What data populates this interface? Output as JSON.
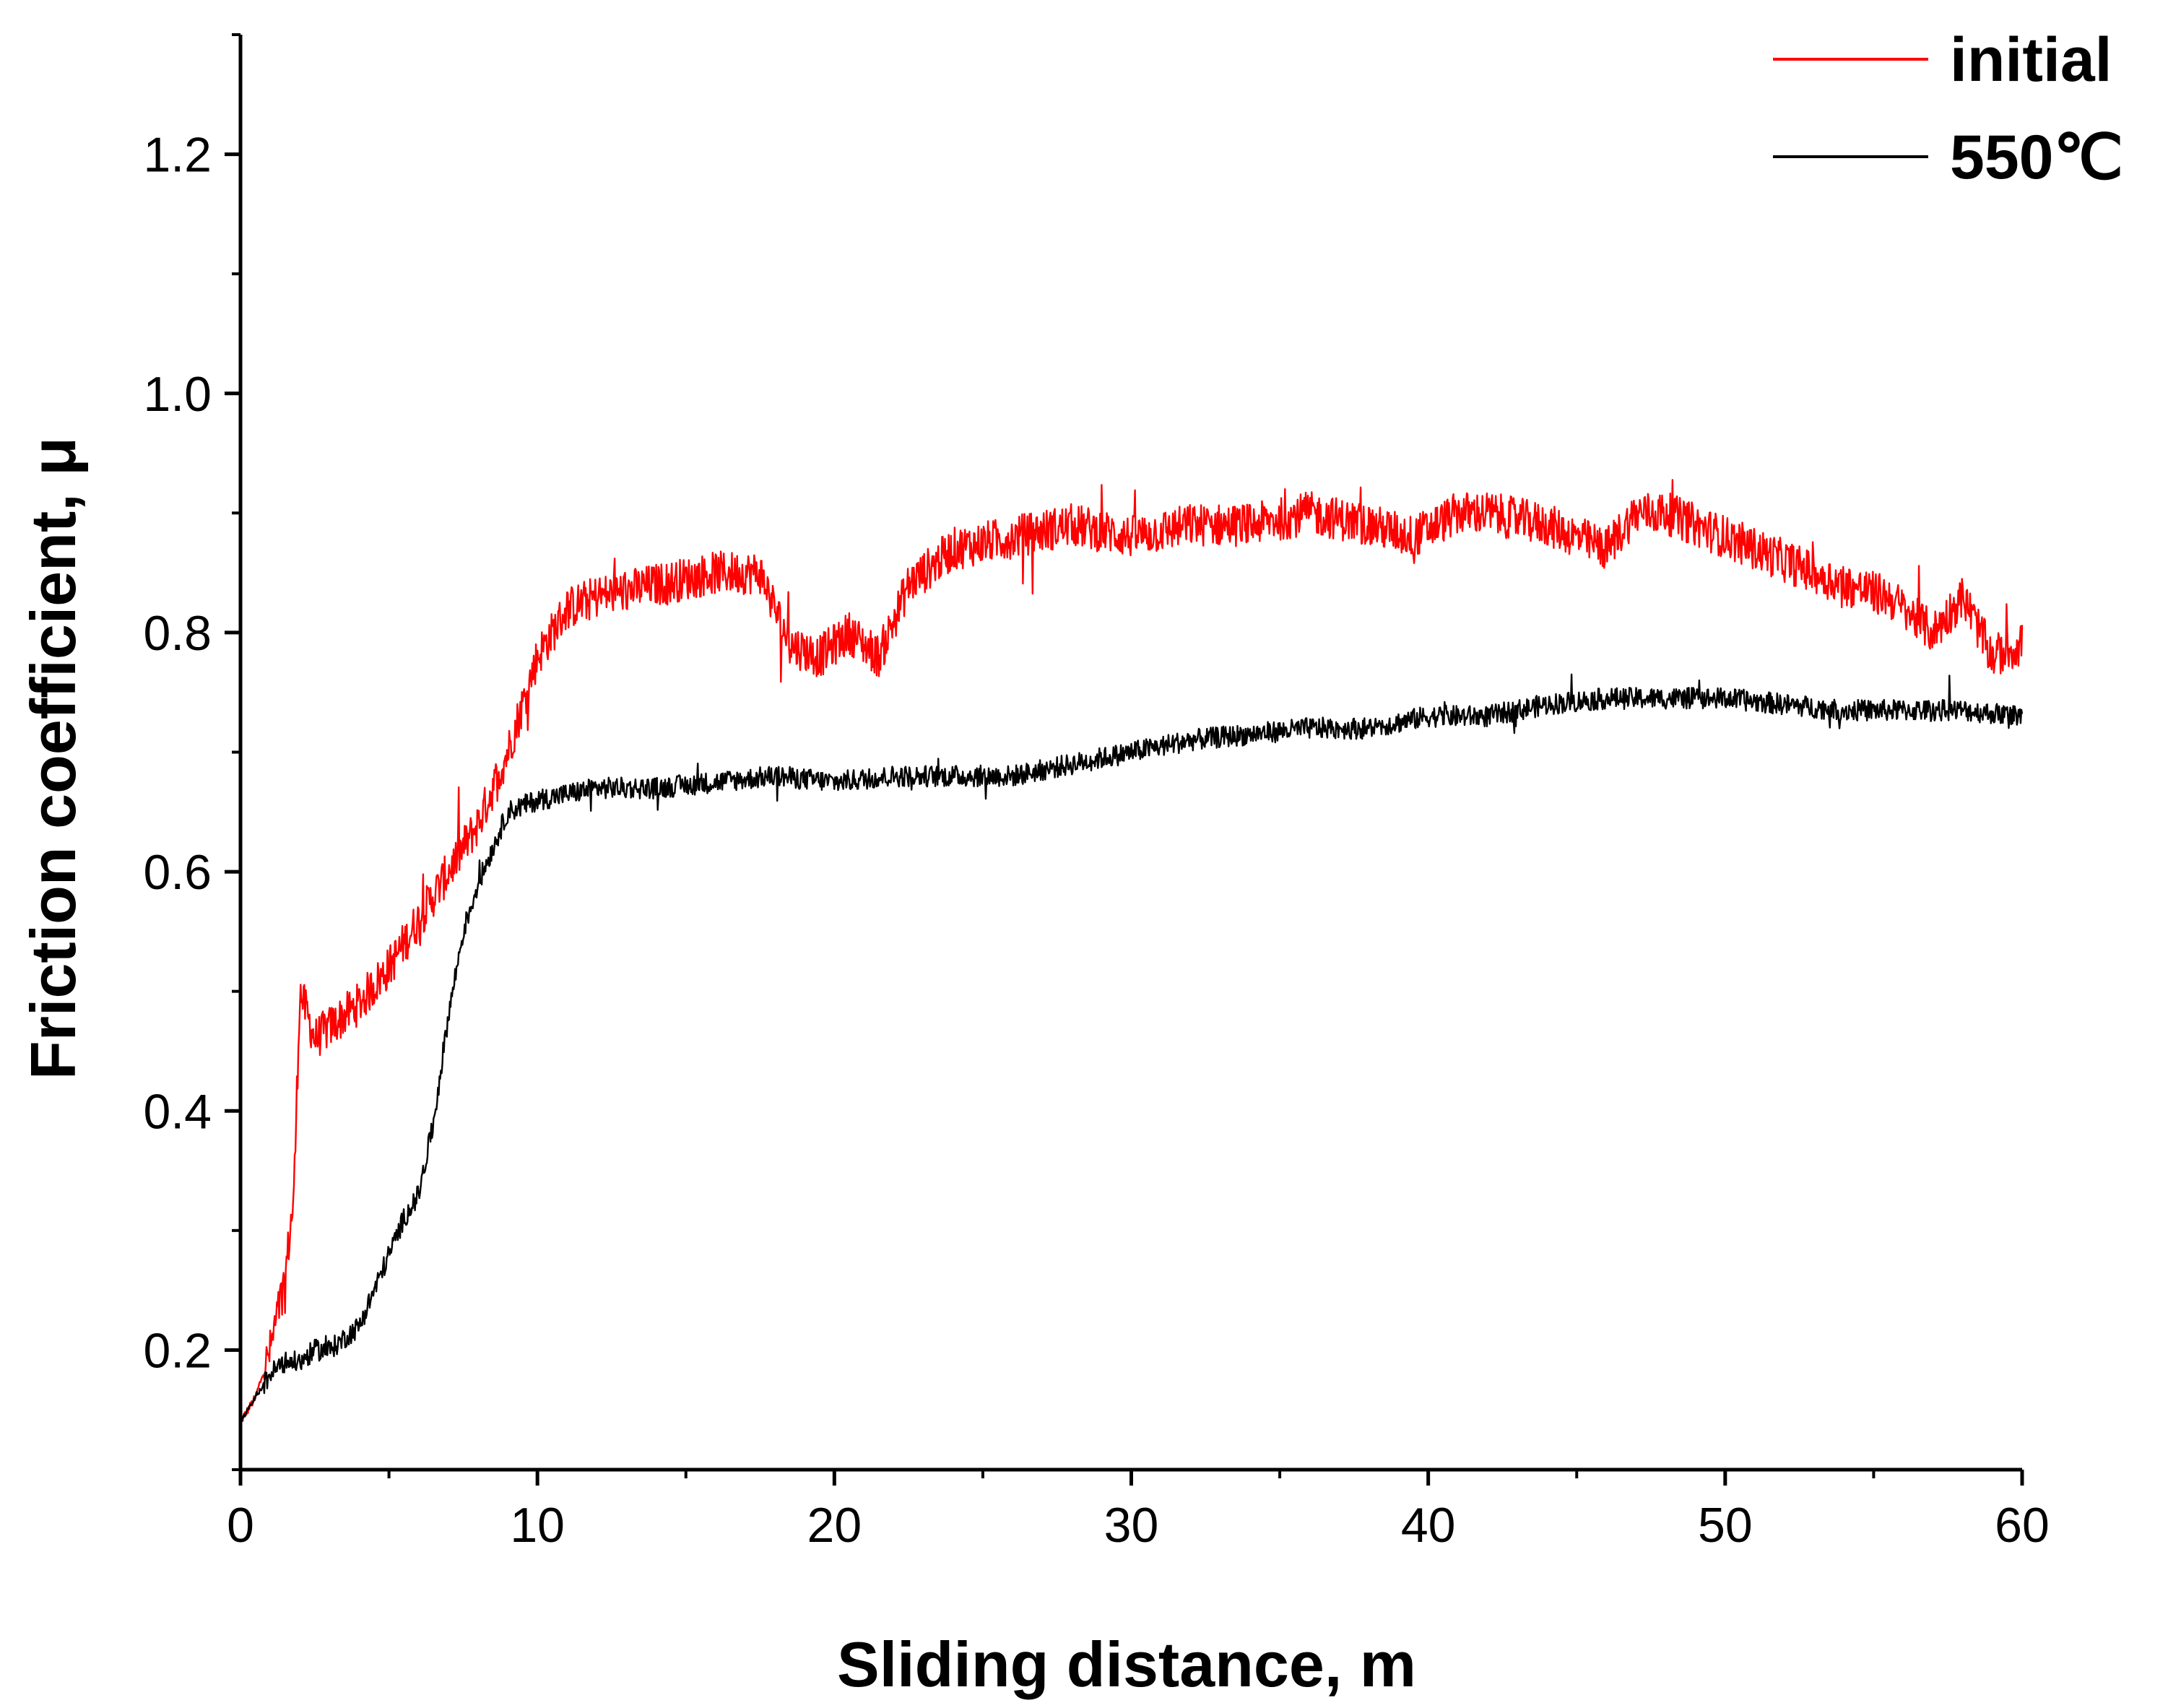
{
  "chart_data": {
    "type": "line",
    "title": "",
    "xlabel": "Sliding distance, m",
    "ylabel": "Friction coefficient, μ",
    "xlim": [
      0,
      60
    ],
    "ylim": [
      0.1,
      1.3
    ],
    "xticks": [
      0,
      10,
      20,
      30,
      40,
      50,
      60
    ],
    "xtick_labels": [
      "0",
      "10",
      "20",
      "30",
      "40",
      "50",
      "60"
    ],
    "yticks": [
      0.2,
      0.4,
      0.6,
      0.8,
      1.0,
      1.2
    ],
    "ytick_labels": [
      "0.2",
      "0.4",
      "0.6",
      "0.8",
      "1.0",
      "1.2"
    ],
    "grid": false,
    "legend_position": "top-right",
    "series": [
      {
        "name": "initial",
        "color": "#ff0000",
        "noise": 0.018,
        "x": [
          0,
          0.5,
          1.0,
          1.5,
          1.8,
          2.0,
          2.5,
          3.0,
          4.0,
          5.0,
          6.0,
          7.0,
          8.0,
          9.0,
          10.0,
          11.0,
          12.0,
          14.0,
          16.0,
          17.5,
          18.5,
          19.5,
          20.5,
          21.5,
          22.5,
          24.0,
          26.0,
          28.0,
          30.0,
          32.0,
          34.0,
          36.0,
          38.0,
          39.5,
          41.0,
          42.0,
          44.0,
          46.0,
          47.0,
          48.0,
          50.0,
          52.0,
          54.0,
          55.5,
          57.0,
          58.0,
          59.0,
          60.0
        ],
        "y": [
          0.14,
          0.16,
          0.2,
          0.26,
          0.33,
          0.5,
          0.46,
          0.47,
          0.49,
          0.52,
          0.56,
          0.6,
          0.64,
          0.7,
          0.78,
          0.82,
          0.83,
          0.84,
          0.85,
          0.85,
          0.79,
          0.78,
          0.8,
          0.78,
          0.84,
          0.87,
          0.88,
          0.89,
          0.88,
          0.89,
          0.89,
          0.9,
          0.89,
          0.88,
          0.9,
          0.9,
          0.89,
          0.87,
          0.9,
          0.9,
          0.88,
          0.86,
          0.84,
          0.83,
          0.8,
          0.83,
          0.78,
          0.79
        ]
      },
      {
        "name": "550℃",
        "color": "#000000",
        "noise": 0.009,
        "x": [
          0,
          0.5,
          1.0,
          1.5,
          2.0,
          2.5,
          3.0,
          3.5,
          4.0,
          5.0,
          5.5,
          6.0,
          6.5,
          7.0,
          7.5,
          8.0,
          8.5,
          9.0,
          10.0,
          12.0,
          14.0,
          16.0,
          18.0,
          20.0,
          22.0,
          24.0,
          26.0,
          28.0,
          30.0,
          32.0,
          34.0,
          36.0,
          38.0,
          40.0,
          42.0,
          44.0,
          46.0,
          48.0,
          50.0,
          52.0,
          54.0,
          56.0,
          58.0,
          60.0
        ],
        "y": [
          0.14,
          0.16,
          0.18,
          0.19,
          0.19,
          0.2,
          0.2,
          0.21,
          0.22,
          0.28,
          0.31,
          0.33,
          0.39,
          0.48,
          0.55,
          0.59,
          0.62,
          0.65,
          0.66,
          0.67,
          0.67,
          0.675,
          0.68,
          0.675,
          0.68,
          0.68,
          0.68,
          0.69,
          0.7,
          0.71,
          0.715,
          0.72,
          0.72,
          0.73,
          0.73,
          0.74,
          0.745,
          0.745,
          0.745,
          0.74,
          0.735,
          0.735,
          0.735,
          0.73
        ]
      }
    ]
  }
}
